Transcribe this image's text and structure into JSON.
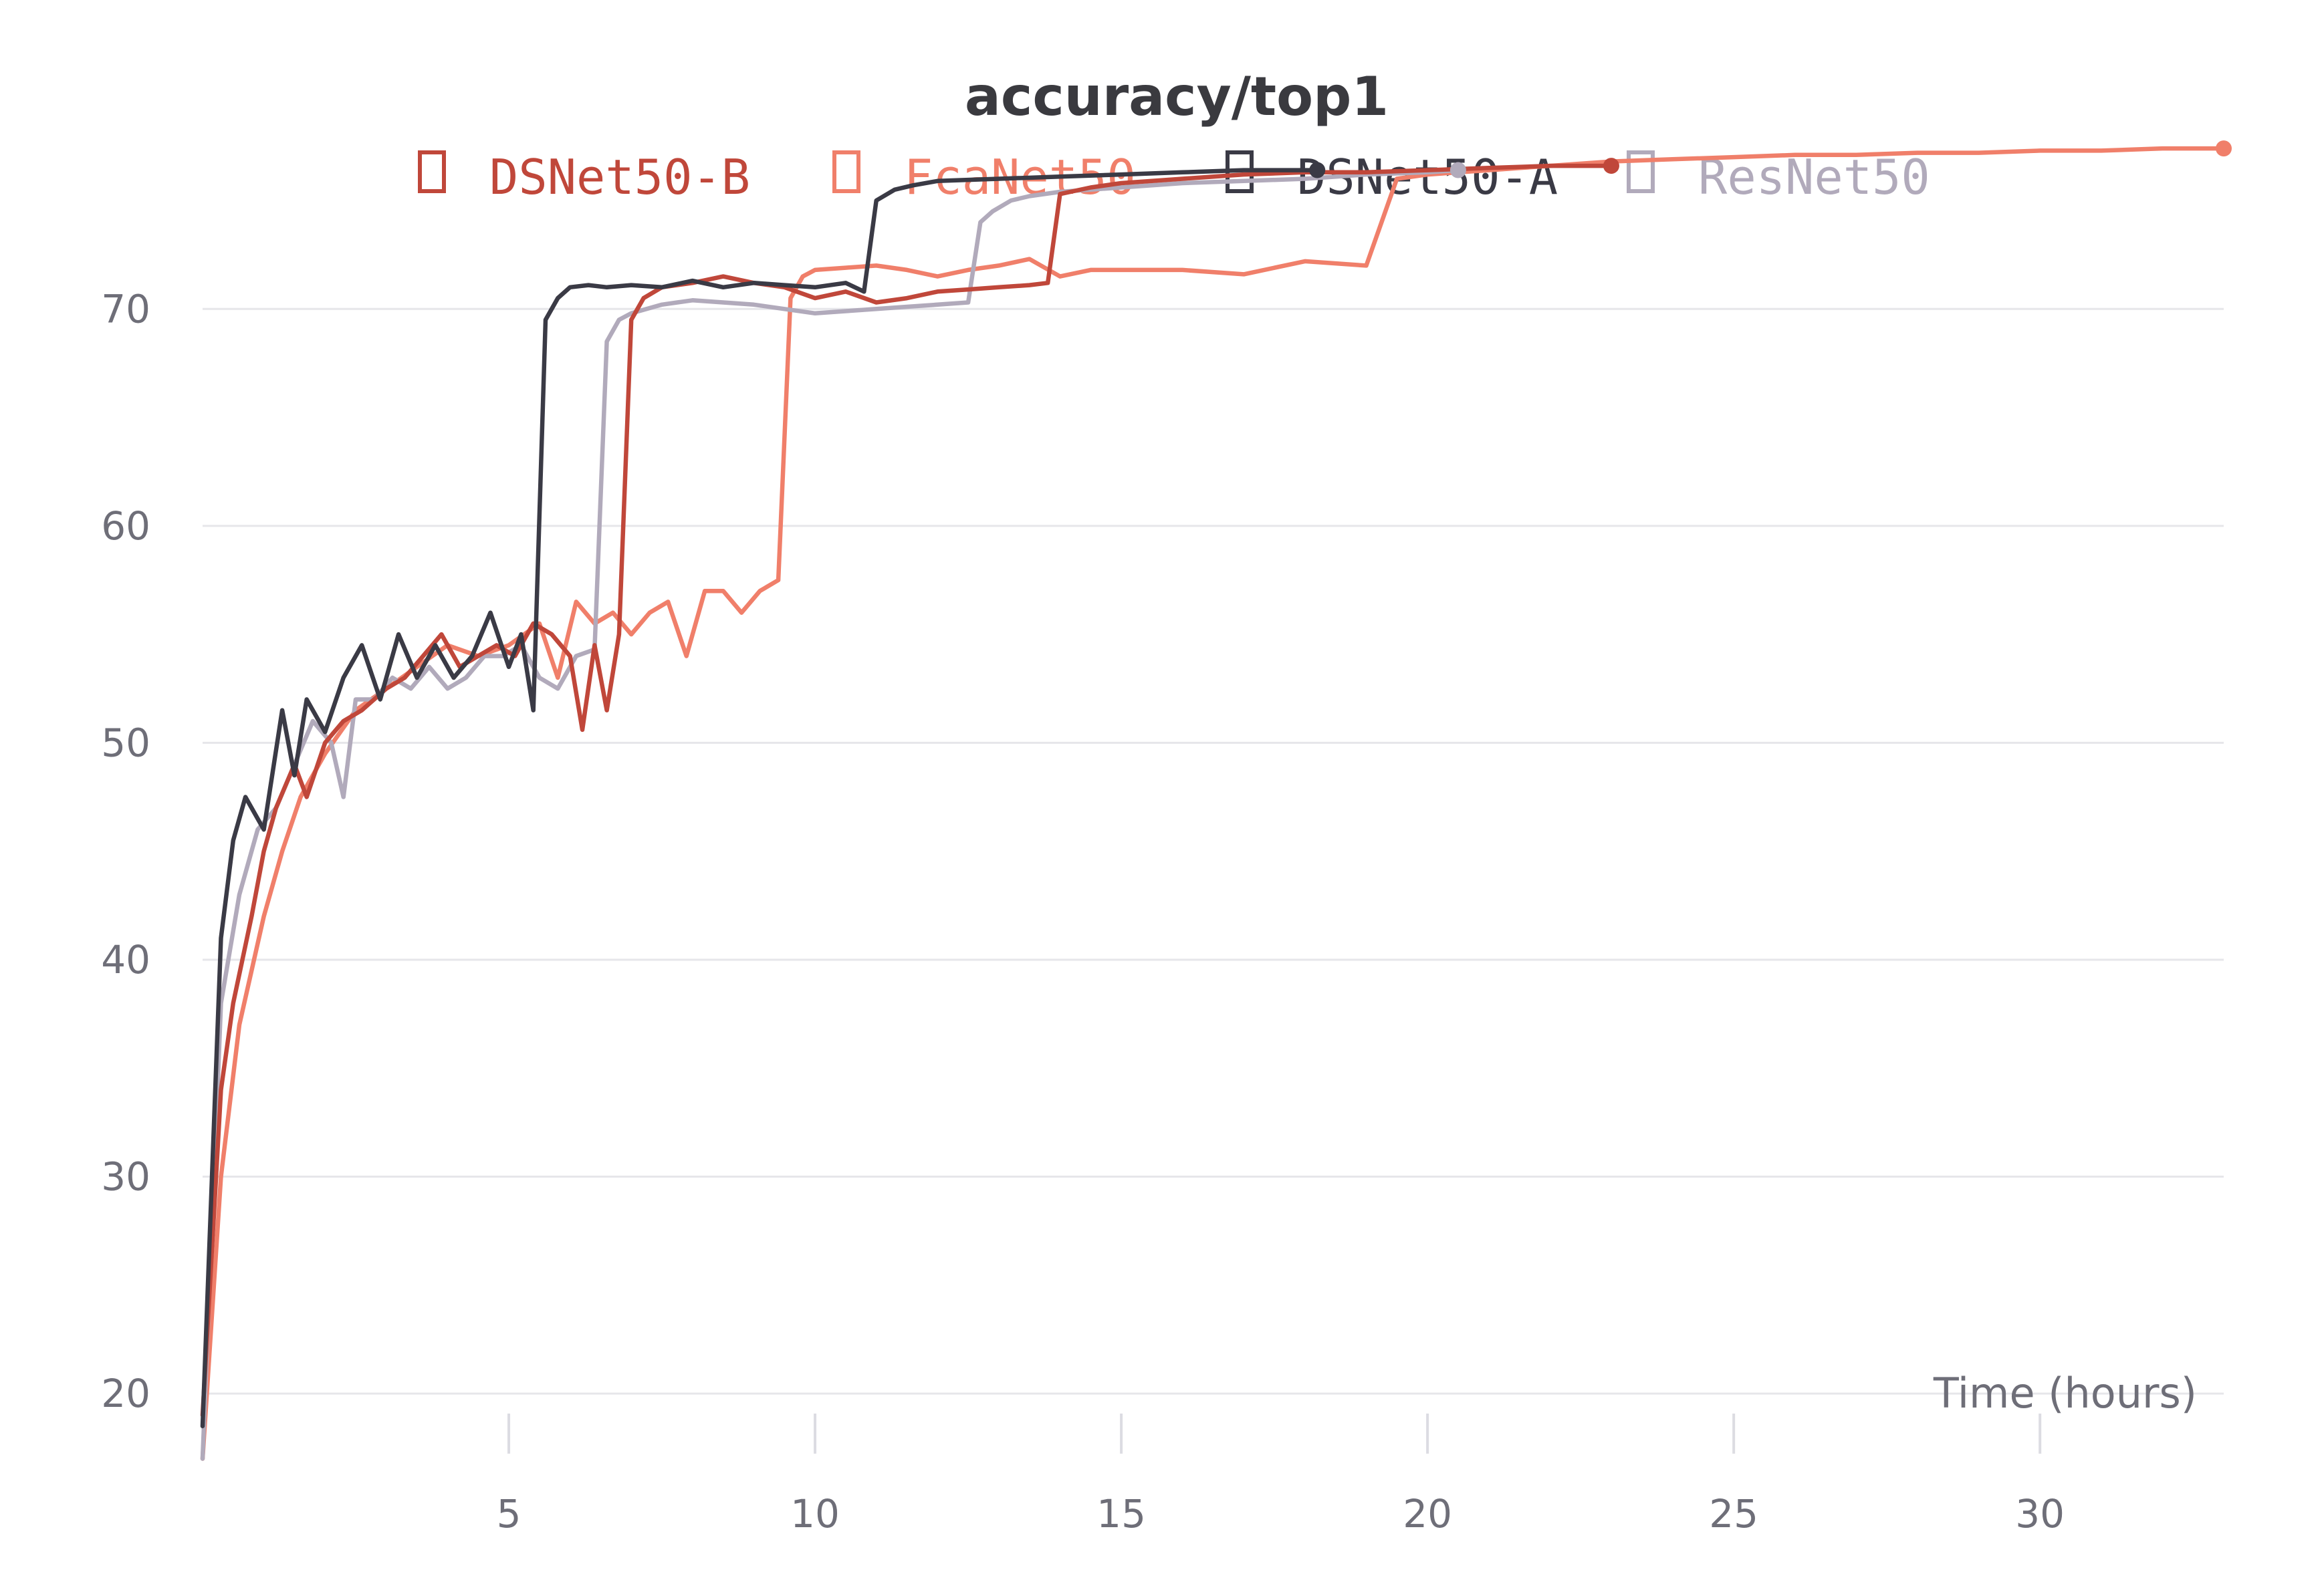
{
  "chart_data": {
    "type": "line",
    "title": "accuracy/top1",
    "xlabel": "Time (hours)",
    "ylabel": "",
    "xlim": [
      0,
      33
    ],
    "ylim": [
      18,
      75
    ],
    "xticks": [
      5,
      10,
      15,
      20,
      25,
      30
    ],
    "yticks": [
      20,
      30,
      40,
      50,
      60,
      70
    ],
    "grid": true,
    "legend_position": "top",
    "series": [
      {
        "name": "DSNet50-B",
        "color": "#c0473a",
        "x": [
          0,
          0.3,
          0.5,
          0.8,
          1.0,
          1.2,
          1.5,
          1.7,
          2.0,
          2.3,
          2.6,
          3.0,
          3.3,
          3.6,
          3.9,
          4.2,
          4.5,
          4.8,
          5.1,
          5.4,
          5.7,
          6.0,
          6.2,
          6.4,
          6.6,
          6.8,
          7.0,
          7.2,
          7.5,
          8.0,
          8.5,
          9.0,
          9.5,
          10.0,
          10.5,
          11.0,
          11.5,
          12.0,
          12.5,
          13.0,
          13.5,
          13.8,
          14.0,
          14.5,
          15.0,
          16.0,
          17.0,
          18.0,
          19.0,
          20.0,
          21.0,
          22.0,
          23.0
        ],
        "y": [
          19,
          34,
          38,
          42,
          45,
          47,
          49,
          47.5,
          50,
          51,
          51.5,
          52.5,
          53,
          54,
          55,
          53.5,
          54,
          54.5,
          54,
          55.5,
          55,
          54,
          50.6,
          54.5,
          51.5,
          55,
          69.5,
          70.5,
          71,
          71.2,
          71.5,
          71.2,
          71,
          70.5,
          70.8,
          70.3,
          70.5,
          70.8,
          70.9,
          71,
          71.1,
          71.2,
          75.3,
          75.6,
          75.8,
          76,
          76.2,
          76.3,
          76.3,
          76.4,
          76.5,
          76.6,
          76.6
        ]
      },
      {
        "name": "FcaNet50",
        "color": "#f07f6a",
        "x": [
          0,
          0.3,
          0.6,
          1.0,
          1.3,
          1.6,
          2.0,
          2.5,
          3.0,
          3.5,
          4.0,
          4.5,
          5.0,
          5.5,
          5.8,
          6.1,
          6.4,
          6.7,
          7.0,
          7.3,
          7.6,
          7.9,
          8.2,
          8.5,
          8.8,
          9.1,
          9.4,
          9.6,
          9.8,
          10.0,
          10.5,
          11.0,
          11.5,
          12.0,
          12.5,
          13.0,
          13.5,
          14.0,
          14.5,
          15.0,
          16.0,
          17.0,
          18.0,
          19.0,
          19.5,
          20.0,
          21.0,
          22.0,
          23.0,
          24.0,
          25.0,
          26.0,
          27.0,
          28.0,
          29.0,
          30.0,
          31.0,
          32.0,
          33.0
        ],
        "y": [
          17,
          30,
          37,
          42,
          45,
          47.5,
          49.5,
          51.5,
          52.5,
          53.5,
          54.5,
          54,
          54.5,
          55.5,
          53,
          56.5,
          55.5,
          56,
          55,
          56,
          56.5,
          54,
          57,
          57,
          56,
          57,
          57.5,
          70.5,
          71.5,
          71.8,
          71.9,
          72,
          71.8,
          71.5,
          71.8,
          72,
          72.3,
          71.5,
          71.8,
          71.8,
          71.8,
          71.6,
          72.2,
          72,
          76.0,
          76.2,
          76.4,
          76.6,
          76.8,
          76.9,
          77.0,
          77.1,
          77.1,
          77.2,
          77.2,
          77.3,
          77.3,
          77.4,
          77.4
        ]
      },
      {
        "name": "DSNet50-A",
        "color": "#3a3a45",
        "x": [
          0,
          0.3,
          0.5,
          0.7,
          1.0,
          1.3,
          1.5,
          1.7,
          2.0,
          2.3,
          2.6,
          2.9,
          3.2,
          3.5,
          3.8,
          4.1,
          4.4,
          4.7,
          5.0,
          5.2,
          5.4,
          5.6,
          5.8,
          6.0,
          6.3,
          6.6,
          7.0,
          7.5,
          8.0,
          8.5,
          9.0,
          9.5,
          10.0,
          10.5,
          10.8,
          11.0,
          11.3,
          11.6,
          12.0,
          13.0,
          14.0,
          15.0,
          16.0,
          17.0,
          18.0,
          18.2
        ],
        "y": [
          18.5,
          41,
          45.5,
          47.5,
          46,
          51.5,
          48.5,
          52,
          50.5,
          53,
          54.5,
          52,
          55,
          53,
          54.5,
          53,
          54,
          56,
          53.5,
          55,
          51.5,
          69.5,
          70.5,
          71,
          71.1,
          71,
          71.1,
          71,
          71.3,
          71,
          71.2,
          71.1,
          71,
          71.2,
          70.8,
          75,
          75.5,
          75.7,
          75.9,
          76,
          76.1,
          76.2,
          76.3,
          76.4,
          76.4,
          76.4
        ]
      },
      {
        "name": "ResNet50",
        "color": "#b1aabb",
        "x": [
          0,
          0.3,
          0.6,
          0.9,
          1.2,
          1.5,
          1.8,
          2.1,
          2.3,
          2.5,
          2.8,
          3.1,
          3.4,
          3.7,
          4.0,
          4.3,
          4.6,
          4.9,
          5.2,
          5.5,
          5.8,
          6.1,
          6.4,
          6.6,
          6.8,
          7.0,
          7.5,
          8.0,
          8.5,
          9.0,
          9.5,
          10.0,
          10.5,
          11.0,
          11.5,
          12.0,
          12.5,
          12.7,
          12.9,
          13.2,
          13.5,
          14.0,
          15.0,
          16.0,
          17.0,
          18.0,
          19.0,
          20.0,
          20.5
        ],
        "y": [
          17,
          38,
          43,
          46,
          47,
          49,
          51,
          50,
          47.5,
          52,
          52,
          53,
          52.5,
          53.5,
          52.5,
          53,
          54,
          54,
          54.5,
          53,
          52.5,
          54,
          54.3,
          68.5,
          69.5,
          69.8,
          70.2,
          70.4,
          70.3,
          70.2,
          70,
          69.8,
          69.9,
          70,
          70.1,
          70.2,
          70.3,
          74,
          74.5,
          75,
          75.2,
          75.4,
          75.6,
          75.8,
          75.9,
          76,
          76.2,
          76.3,
          76.4
        ]
      }
    ]
  }
}
